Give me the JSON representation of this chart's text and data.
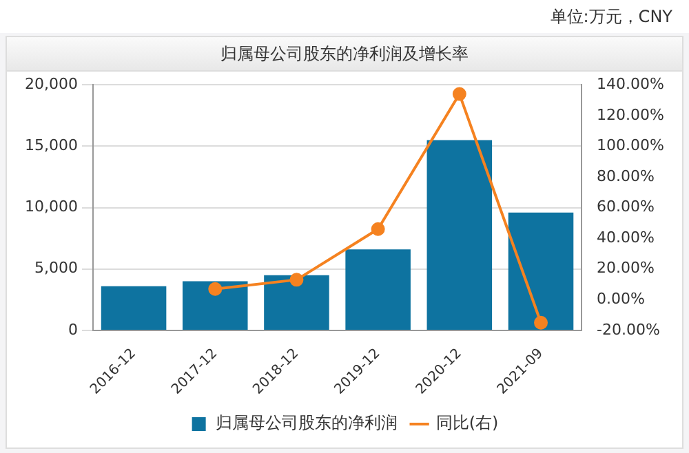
{
  "chart_data": {
    "type": "bar",
    "title": "归属母公司股东的净利润及增长率",
    "annotations": [
      "单位:万元，CNY"
    ],
    "categories": [
      "2016-12",
      "2017-12",
      "2018-12",
      "2019-12",
      "2020-12",
      "2021-09"
    ],
    "series": [
      {
        "name": "归属母公司股东的净利润",
        "color": "#0e73a0",
        "values": [
          3600,
          4000,
          4500,
          6600,
          15500,
          9600
        ]
      },
      {
        "name": "同比(右)",
        "type": "line",
        "axis": "y2",
        "color": "#f58220",
        "values": [
          null,
          7,
          13,
          46,
          134,
          -15
        ]
      }
    ],
    "ylim": [
      0,
      20000
    ],
    "yticks": [
      {
        "value": 0,
        "label": "0"
      },
      {
        "value": 5000,
        "label": "5,000"
      },
      {
        "value": 10000,
        "label": "10,000"
      },
      {
        "value": 15000,
        "label": "15,000"
      },
      {
        "value": 20000,
        "label": "20,000"
      }
    ],
    "y2lim": [
      -20,
      140
    ],
    "y2ticks": [
      {
        "value": -20,
        "label": "-20.00%"
      },
      {
        "value": 0,
        "label": "0.00%"
      },
      {
        "value": 20,
        "label": "20.00%"
      },
      {
        "value": 40,
        "label": "40.00%"
      },
      {
        "value": 60,
        "label": "60.00%"
      },
      {
        "value": 80,
        "label": "80.00%"
      },
      {
        "value": 100,
        "label": "100.00%"
      },
      {
        "value": 120,
        "label": "120.00%"
      },
      {
        "value": 140,
        "label": "140.00%"
      }
    ],
    "grid": "y",
    "legend": "bottom",
    "marker": "circle"
  }
}
